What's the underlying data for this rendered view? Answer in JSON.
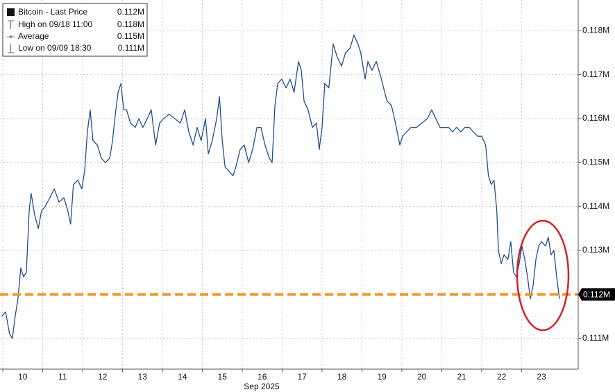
{
  "chart_data": {
    "type": "line",
    "series": [
      {
        "name": "Bitcoin - Last Price",
        "color": "#1d4f8c",
        "x": [
          9.97,
          10.07,
          10.17,
          10.24,
          10.31,
          10.38,
          10.45,
          10.52,
          10.59,
          10.66,
          10.71,
          10.8,
          10.89,
          10.97,
          11.06,
          11.18,
          11.29,
          11.41,
          11.53,
          11.63,
          11.7,
          11.77,
          11.88,
          11.98,
          12.05,
          12.12,
          12.19,
          12.26,
          12.37,
          12.47,
          12.57,
          12.68,
          12.75,
          12.82,
          12.89,
          12.96,
          13.03,
          13.1,
          13.2,
          13.32,
          13.41,
          13.51,
          13.62,
          13.72,
          13.83,
          13.93,
          14.03,
          14.17,
          14.31,
          14.45,
          14.56,
          14.66,
          14.77,
          14.87,
          14.97,
          15.08,
          15.15,
          15.25,
          15.36,
          15.43,
          15.5,
          15.57,
          15.67,
          15.77,
          15.84,
          15.95,
          16.05,
          16.16,
          16.26,
          16.37,
          16.47,
          16.57,
          16.68,
          16.75,
          16.82,
          16.89,
          16.99,
          17.1,
          17.2,
          17.3,
          17.41,
          17.48,
          17.55,
          17.65,
          17.76,
          17.86,
          17.93,
          18.0,
          18.07,
          18.17,
          18.28,
          18.38,
          18.49,
          18.59,
          18.7,
          18.8,
          18.9,
          18.97,
          19.08,
          19.15,
          19.25,
          19.36,
          19.46,
          19.57,
          19.63,
          19.74,
          19.84,
          19.95,
          20.02,
          20.12,
          20.23,
          20.37,
          20.5,
          20.64,
          20.75,
          20.85,
          20.96,
          21.06,
          21.17,
          21.27,
          21.37,
          21.48,
          21.58,
          21.69,
          21.79,
          21.9,
          22.0,
          22.1,
          22.17,
          22.24,
          22.31,
          22.38,
          22.42,
          22.49,
          22.56,
          22.66,
          22.73,
          22.8,
          22.87,
          22.94,
          23.01,
          23.08,
          23.15,
          23.22,
          23.29,
          23.36,
          23.43,
          23.5,
          23.6,
          23.67,
          23.74,
          23.81,
          23.88,
          23.95
        ],
        "values": [
          0.1115,
          0.1116,
          0.1111,
          0.111,
          0.1115,
          0.1119,
          0.1126,
          0.1124,
          0.1125,
          0.1139,
          0.1143,
          0.1138,
          0.1135,
          0.1139,
          0.114,
          0.1142,
          0.1144,
          0.1141,
          0.1142,
          0.1139,
          0.1136,
          0.1145,
          0.1146,
          0.1144,
          0.1148,
          0.1157,
          0.1162,
          0.1155,
          0.1154,
          0.1151,
          0.115,
          0.1151,
          0.1155,
          0.1161,
          0.1166,
          0.1168,
          0.1162,
          0.1162,
          0.1159,
          0.1158,
          0.116,
          0.1158,
          0.116,
          0.1162,
          0.1154,
          0.1159,
          0.116,
          0.1161,
          0.116,
          0.1159,
          0.1162,
          0.1157,
          0.1154,
          0.1158,
          0.1155,
          0.116,
          0.1152,
          0.1155,
          0.116,
          0.1165,
          0.1155,
          0.1149,
          0.1148,
          0.1147,
          0.1149,
          0.1153,
          0.1154,
          0.115,
          0.1153,
          0.1158,
          0.1158,
          0.1154,
          0.1151,
          0.115,
          0.1163,
          0.1168,
          0.1169,
          0.1167,
          0.1169,
          0.1166,
          0.1173,
          0.1171,
          0.1164,
          0.1162,
          0.1158,
          0.1159,
          0.1153,
          0.1158,
          0.1168,
          0.1167,
          0.1177,
          0.1174,
          0.1172,
          0.1175,
          0.1176,
          0.1179,
          0.1177,
          0.1175,
          0.1169,
          0.1173,
          0.1171,
          0.1173,
          0.117,
          0.1166,
          0.1164,
          0.1163,
          0.1159,
          0.1154,
          0.1156,
          0.1157,
          0.1158,
          0.1158,
          0.1159,
          0.116,
          0.1162,
          0.116,
          0.1158,
          0.1158,
          0.1158,
          0.1157,
          0.1158,
          0.1157,
          0.1158,
          0.1158,
          0.1157,
          0.1156,
          0.1156,
          0.1154,
          0.1147,
          0.1145,
          0.1146,
          0.1139,
          0.113,
          0.1127,
          0.1129,
          0.1128,
          0.1132,
          0.1125,
          0.1124,
          0.1127,
          0.1131,
          0.1128,
          0.1124,
          0.1119,
          0.1122,
          0.1128,
          0.1131,
          0.1132,
          0.1131,
          0.1133,
          0.1129,
          0.113,
          0.1124,
          0.1119
        ]
      }
    ],
    "last_price": {
      "value": 0.112,
      "label": "0.112M",
      "color": "#f0962a"
    },
    "legend_stats": [
      {
        "name": "High on 09/18 11:00",
        "value": "0.118M"
      },
      {
        "name": "Average",
        "value": "0.115M"
      },
      {
        "name": "Low on 09/09 18:30",
        "value": "0.111M"
      }
    ],
    "xlabel": "Sep 2025",
    "xlim": [
      9.93,
      24.42
    ],
    "xticks": [
      {
        "value": 10,
        "label": "10"
      },
      {
        "value": 11,
        "label": "11"
      },
      {
        "value": 12,
        "label": "12"
      },
      {
        "value": 13,
        "label": "13"
      },
      {
        "value": 14,
        "label": "14"
      },
      {
        "value": 15,
        "label": "15"
      },
      {
        "value": 16,
        "label": "16"
      },
      {
        "value": 17,
        "label": "17"
      },
      {
        "value": 18,
        "label": "18"
      },
      {
        "value": 19,
        "label": "19"
      },
      {
        "value": 20,
        "label": "20"
      },
      {
        "value": 21,
        "label": "21"
      },
      {
        "value": 22,
        "label": "22"
      },
      {
        "value": 23,
        "label": "23"
      }
    ],
    "ylim": [
      0.1103,
      0.1187
    ],
    "yticks": [
      {
        "value": 0.111,
        "label": "0.111M"
      },
      {
        "value": 0.113,
        "label": "0.113M"
      },
      {
        "value": 0.114,
        "label": "0.114M"
      },
      {
        "value": 0.115,
        "label": "0.115M"
      },
      {
        "value": 0.116,
        "label": "0.116M"
      },
      {
        "value": 0.117,
        "label": "0.117M"
      },
      {
        "value": 0.118,
        "label": "0.118M"
      }
    ],
    "grid": true
  }
}
